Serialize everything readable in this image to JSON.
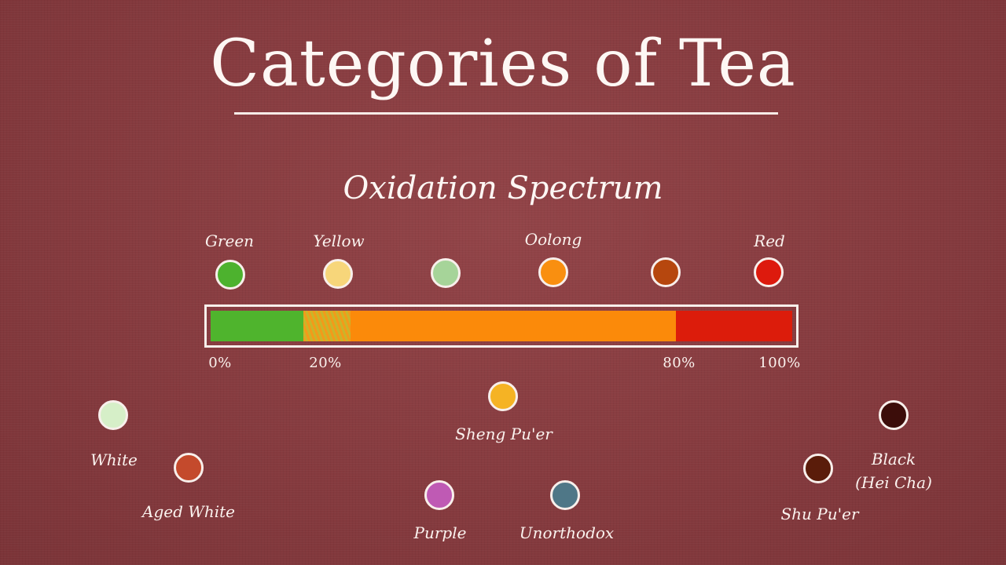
{
  "title": "Categories of Tea",
  "subtitle": "Oxidation Spectrum",
  "top_row": [
    {
      "label": "Green",
      "color": "#4db22e"
    },
    {
      "label": "Yellow",
      "color": "#f7d67a"
    },
    {
      "label": "",
      "color": "#a6d499"
    },
    {
      "label": "Oolong",
      "color": "#f98f10"
    },
    {
      "label": "",
      "color": "#b6470e"
    },
    {
      "label": "Red",
      "color": "#dd1a0d"
    }
  ],
  "bar": {
    "segments": [
      {
        "from": 0,
        "to": 16,
        "color": "#4fb42d"
      },
      {
        "from": 16,
        "to": 24,
        "color": "hatch"
      },
      {
        "from": 24,
        "to": 80,
        "color": "#fb8a0a"
      },
      {
        "from": 80,
        "to": 100,
        "color": "#dc1c0b"
      }
    ],
    "ticks": [
      "0%",
      "20%",
      "80%",
      "100%"
    ]
  },
  "bottom_teas": {
    "white": {
      "label": "White",
      "color": "#d6efc8"
    },
    "aged_white": {
      "label": "Aged White",
      "color": "#c44a2c"
    },
    "sheng": {
      "label": "Sheng Pu'er",
      "color": "#f5b324"
    },
    "purple": {
      "label": "Purple",
      "color": "#bf5ab4"
    },
    "unorthodox": {
      "label": "Unorthodox",
      "color": "#4f7787"
    },
    "shu": {
      "label": "Shu Pu'er",
      "color": "#5a1c0a"
    },
    "black_line1": "Black",
    "black_line2": "(Hei Cha)",
    "black_color": "#3c0d0a"
  }
}
